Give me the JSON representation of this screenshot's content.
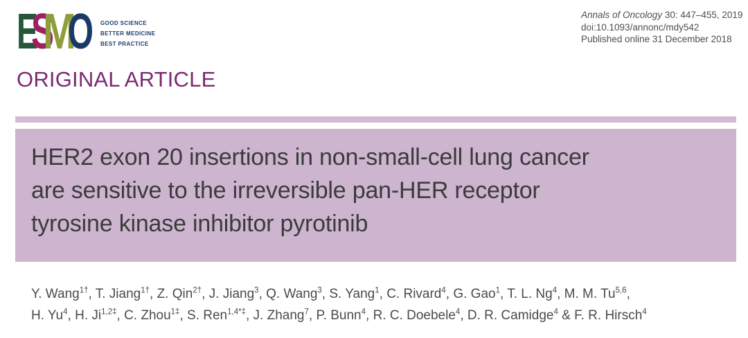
{
  "logo": {
    "letters": [
      {
        "char": "E",
        "color": "#26573b"
      },
      {
        "char": "S",
        "color": "#a01f63"
      },
      {
        "char": "M",
        "color": "#8f9d3c"
      },
      {
        "char": "O",
        "color": "#193a67"
      }
    ],
    "tagline_lines": [
      "GOOD SCIENCE",
      "BETTER MEDICINE",
      "BEST PRACTICE"
    ],
    "tagline_color": "#1b3c6b"
  },
  "citation": {
    "journal": "Annals of Oncology",
    "volume_pages": " 30: 447–455, 2019",
    "doi": "doi:10.1093/annonc/mdy542",
    "published_online": "Published online 31 December 2018",
    "text_color": "#4f4f4f"
  },
  "section_label": {
    "text": "ORIGINAL ARTICLE",
    "color": "#7b2970"
  },
  "banner": {
    "background": "#cdb4cf",
    "strip_background": "#d4bbd5"
  },
  "title": {
    "lines": [
      "HER2 exon 20 insertions in non-small-cell lung cancer",
      "are sensitive to the irreversible pan-HER receptor",
      "tyrosine kinase inhibitor pyrotinib"
    ],
    "text_color": "#3b3b3b"
  },
  "authors": {
    "text_color": "#4a4a4a",
    "line1": [
      {
        "name": "Y. Wang",
        "sup": "1†",
        "sep": ", "
      },
      {
        "name": "T. Jiang",
        "sup": "1†",
        "sep": ", "
      },
      {
        "name": "Z. Qin",
        "sup": "2†",
        "sep": ", "
      },
      {
        "name": "J. Jiang",
        "sup": "3",
        "sep": ", "
      },
      {
        "name": "Q. Wang",
        "sup": "3",
        "sep": ", "
      },
      {
        "name": "S. Yang",
        "sup": "1",
        "sep": ", "
      },
      {
        "name": "C. Rivard",
        "sup": "4",
        "sep": ", "
      },
      {
        "name": "G. Gao",
        "sup": "1",
        "sep": ", "
      },
      {
        "name": "T. L. Ng",
        "sup": "4",
        "sep": ", "
      },
      {
        "name": "M. M. Tu",
        "sup": "5,6",
        "sep": ","
      }
    ],
    "line2": [
      {
        "name": "H. Yu",
        "sup": "4",
        "sep": ", "
      },
      {
        "name": "H. Ji",
        "sup": "1,2‡",
        "sep": ", "
      },
      {
        "name": "C. Zhou",
        "sup": "1‡",
        "sep": ", "
      },
      {
        "name": "S. Ren",
        "sup": "1,4*‡",
        "sep": ", "
      },
      {
        "name": "J. Zhang",
        "sup": "7",
        "sep": ", "
      },
      {
        "name": "P. Bunn",
        "sup": "4",
        "sep": ", "
      },
      {
        "name": "R. C. Doebele",
        "sup": "4",
        "sep": ", "
      },
      {
        "name": "D. R. Camidge",
        "sup": "4",
        "sep": " & "
      },
      {
        "name": "F. R. Hirsch",
        "sup": "4",
        "sep": ""
      }
    ]
  }
}
